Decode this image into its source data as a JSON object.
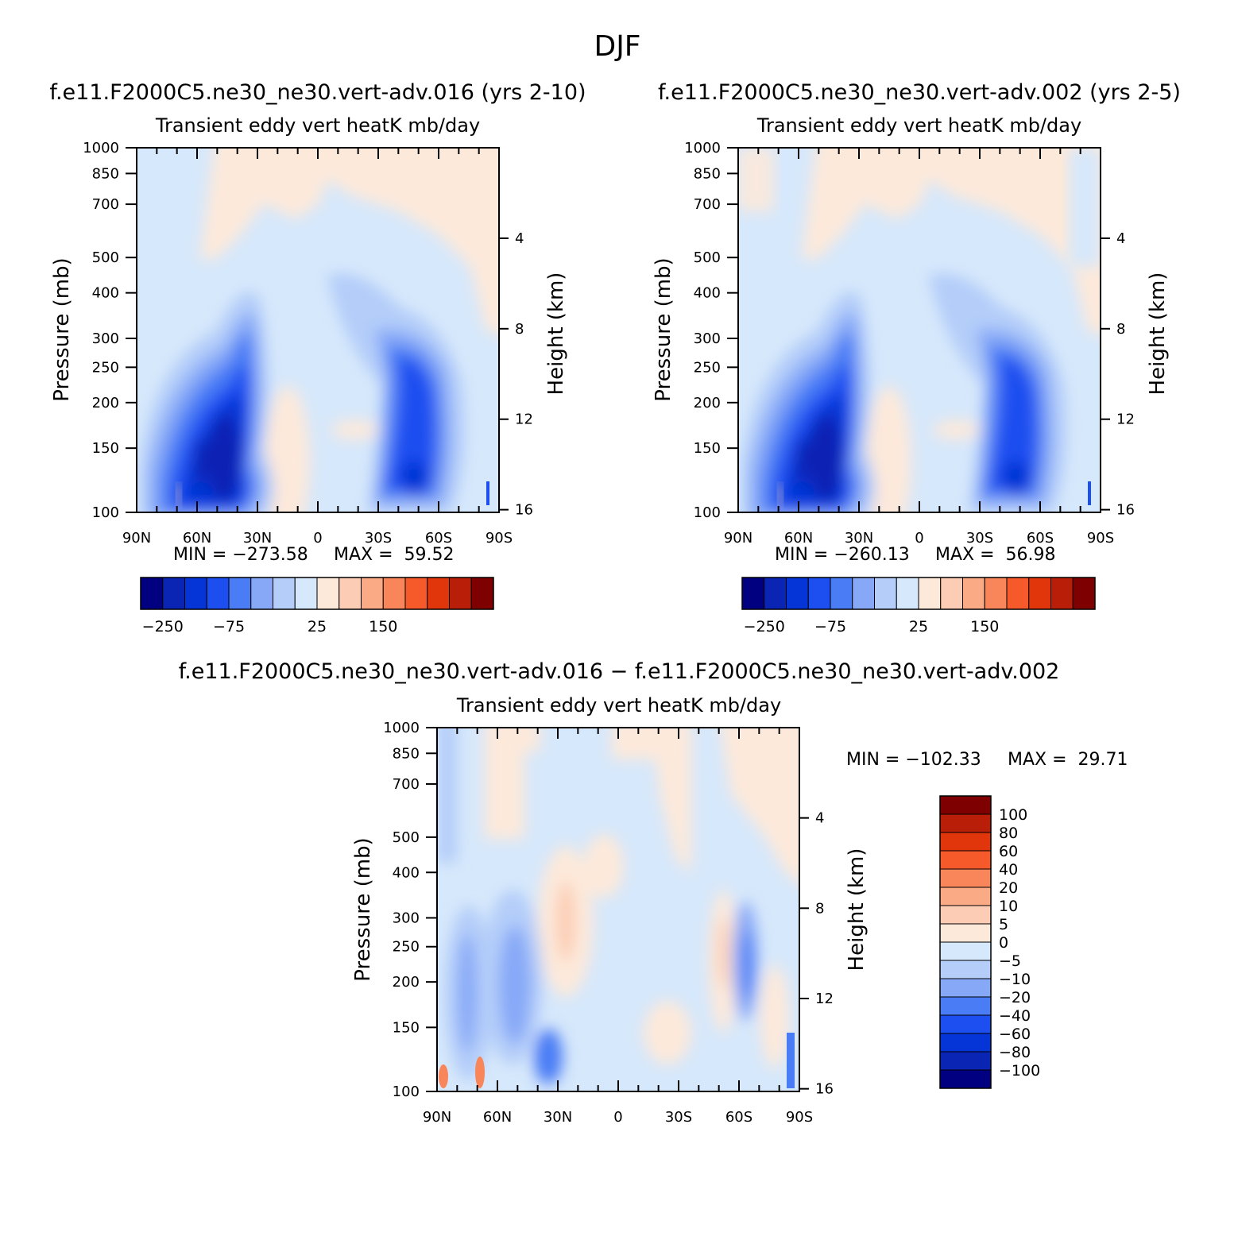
{
  "figure": {
    "title": "DJF"
  },
  "chart_data": [
    {
      "type": "heatmap",
      "id": "p1",
      "title": "f.e11.F2000C5.ne30_ne30.vert-adv.016 (yrs 2-10)",
      "subtitle": "Transient eddy vert heatK mb/day",
      "ylabel": "Pressure (mb)",
      "ylabel_right": "Height (km)",
      "x_ticks": [
        "90N",
        "60N",
        "30N",
        "0",
        "30S",
        "60S",
        "90S"
      ],
      "y_ticks": [
        100,
        150,
        200,
        250,
        300,
        400,
        500,
        700,
        850,
        1000
      ],
      "y_ticks_right": [
        16,
        12,
        8,
        4
      ],
      "xlim": [
        90,
        -90
      ],
      "ylim": [
        1000,
        100
      ],
      "min_label": "MIN = −273.58",
      "max_label": "MAX =  59.52",
      "colorbar_labels": [
        "−250",
        "−75",
        "25",
        "150"
      ]
    },
    {
      "type": "heatmap",
      "id": "p2",
      "title": "f.e11.F2000C5.ne30_ne30.vert-adv.002 (yrs 2-5)",
      "subtitle": "Transient eddy vert heatK mb/day",
      "ylabel": "Pressure (mb)",
      "ylabel_right": "Height (km)",
      "x_ticks": [
        "90N",
        "60N",
        "30N",
        "0",
        "30S",
        "60S",
        "90S"
      ],
      "y_ticks": [
        100,
        150,
        200,
        250,
        300,
        400,
        500,
        700,
        850,
        1000
      ],
      "y_ticks_right": [
        16,
        12,
        8,
        4
      ],
      "xlim": [
        90,
        -90
      ],
      "ylim": [
        1000,
        100
      ],
      "min_label": "MIN = −260.13",
      "max_label": "MAX =  56.98",
      "colorbar_labels": [
        "−250",
        "−75",
        "25",
        "150"
      ]
    },
    {
      "type": "heatmap",
      "id": "p3",
      "title": "f.e11.F2000C5.ne30_ne30.vert-adv.016 − f.e11.F2000C5.ne30_ne30.vert-adv.002",
      "subtitle": "Transient eddy vert heatK mb/day",
      "ylabel": "Pressure (mb)",
      "ylabel_right": "Height (km)",
      "x_ticks": [
        "90N",
        "60N",
        "30N",
        "0",
        "30S",
        "60S",
        "90S"
      ],
      "y_ticks": [
        100,
        150,
        200,
        250,
        300,
        400,
        500,
        700,
        850,
        1000
      ],
      "y_ticks_right": [
        16,
        12,
        8,
        4
      ],
      "xlim": [
        90,
        -90
      ],
      "ylim": [
        1000,
        100
      ],
      "min_label": "MIN = −102.33",
      "max_label": "MAX =  29.71",
      "colorbar_labels": [
        "100",
        "80",
        "60",
        "40",
        "20",
        "10",
        "5",
        "0",
        "−5",
        "−10",
        "−20",
        "−40",
        "−60",
        "−80",
        "−100"
      ]
    }
  ],
  "palette": [
    "#000080",
    "#0a24b4",
    "#0535d6",
    "#1c4ef0",
    "#4a7cf5",
    "#86a8f7",
    "#b4cdf9",
    "#d6e8fb",
    "#fde9da",
    "#fccdb4",
    "#fbaa86",
    "#f8865a",
    "#f65a2a",
    "#e1360b",
    "#b81e08",
    "#7f0000"
  ]
}
